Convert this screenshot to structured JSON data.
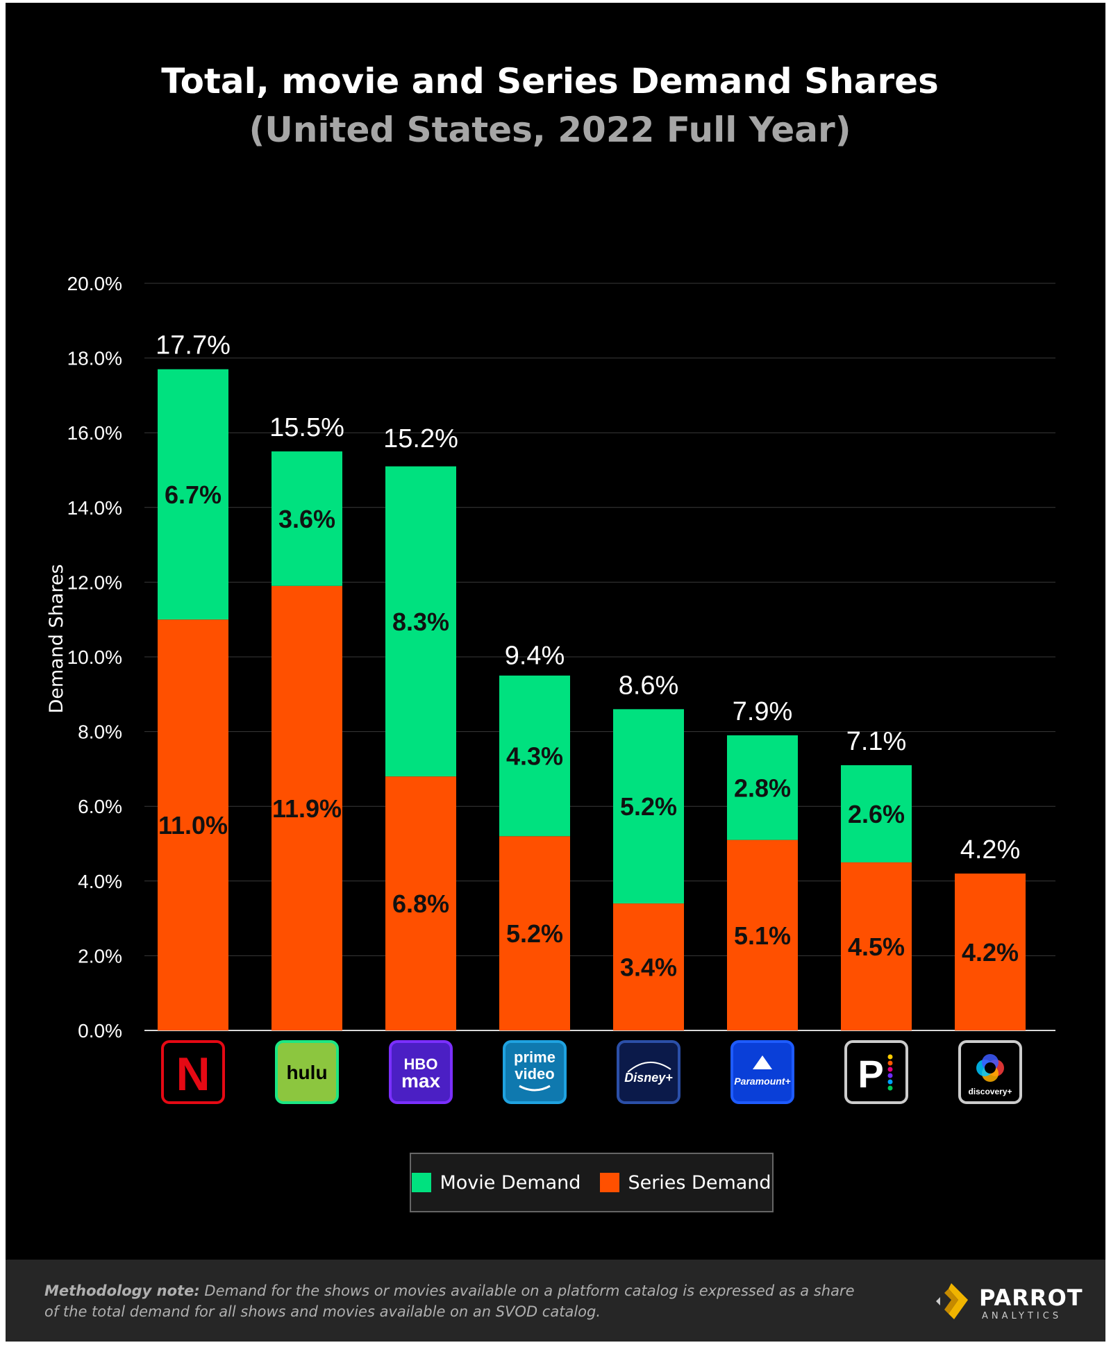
{
  "title": "Total, movie and Series Demand Shares",
  "subtitle": "(United States, 2022 Full Year)",
  "chart_data": {
    "type": "bar",
    "stacked": true,
    "title": "Total, movie and Series Demand Shares",
    "subtitle": "(United States, 2022 Full Year)",
    "xlabel": "",
    "ylabel": "Demand Shares",
    "ylim": [
      0,
      20
    ],
    "yticks": [
      "0.0%",
      "2.0%",
      "4.0%",
      "6.0%",
      "8.0%",
      "10.0%",
      "12.0%",
      "14.0%",
      "16.0%",
      "18.0%",
      "20.0%"
    ],
    "grid": true,
    "legend_position": "bottom-center",
    "categories": [
      "Netflix",
      "Hulu",
      "HBO Max",
      "Prime Video",
      "Disney+",
      "Paramount+",
      "Peacock",
      "Discovery+"
    ],
    "series": [
      {
        "name": "Series Demand",
        "color": "#ff5000",
        "values": [
          11.0,
          11.9,
          6.8,
          5.2,
          3.4,
          5.1,
          4.5,
          4.2
        ],
        "labels": [
          "11.0%",
          "11.9%",
          "6.8%",
          "5.2%",
          "3.4%",
          "5.1%",
          "4.5%",
          "4.2%"
        ]
      },
      {
        "name": "Movie Demand",
        "color": "#00e17f",
        "values": [
          6.7,
          3.6,
          8.3,
          4.3,
          5.2,
          2.8,
          2.6,
          0.0
        ],
        "labels": [
          "6.7%",
          "3.6%",
          "8.3%",
          "4.3%",
          "5.2%",
          "2.8%",
          "2.6%",
          ""
        ]
      }
    ],
    "totals": [
      17.7,
      15.5,
      15.2,
      9.4,
      8.6,
      7.9,
      7.1,
      4.2
    ],
    "total_labels": [
      "17.7%",
      "15.5%",
      "15.2%",
      "9.4%",
      "8.6%",
      "7.9%",
      "7.1%",
      "4.2%"
    ]
  },
  "logos": [
    {
      "icon": "netflix-logo",
      "text": "N",
      "border": "#e50914",
      "bg": "#000000",
      "fg": "#e50914"
    },
    {
      "icon": "hulu-logo",
      "text": "hulu",
      "border": "#1ce783",
      "bg": "#8cc63f",
      "fg": "#000000"
    },
    {
      "icon": "hbo-max-logo",
      "text": "HBO max",
      "border": "#7b2fff",
      "bg": "#4b1fc4",
      "fg": "#ffffff"
    },
    {
      "icon": "prime-video-logo",
      "text": "prime video",
      "border": "#1fa2e0",
      "bg": "#0f79af",
      "fg": "#ffffff"
    },
    {
      "icon": "disney-plus-logo",
      "text": "Disney+",
      "border": "#2b4fa8",
      "bg": "#0b1a4a",
      "fg": "#ffffff"
    },
    {
      "icon": "paramount-plus-logo",
      "text": "Paramount+",
      "border": "#1e5bff",
      "bg": "#0a3fd8",
      "fg": "#ffffff"
    },
    {
      "icon": "peacock-logo",
      "text": "P",
      "border": "#cccccc",
      "bg": "#000000",
      "fg": "#ffffff"
    },
    {
      "icon": "discovery-plus-logo",
      "text": "discovery+",
      "border": "#cccccc",
      "bg": "#000000",
      "fg": "#ffffff"
    }
  ],
  "legend": {
    "movie_label": "Movie Demand",
    "series_label": "Series Demand"
  },
  "footer": {
    "note_label": "Methodology note:",
    "note_text": " Demand for the shows or movies available on a platform catalog is expressed as a share of the total demand for all shows and movies available on an SVOD catalog.",
    "brand_name": "PARROT",
    "brand_sub": "ANALYTICS"
  }
}
